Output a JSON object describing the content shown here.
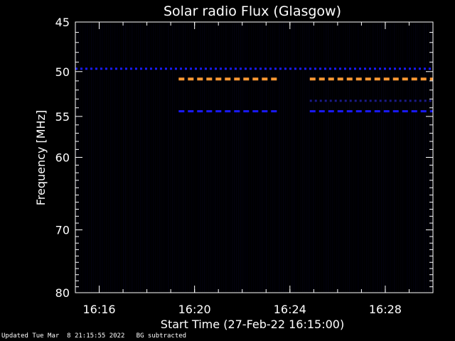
{
  "chart_data": {
    "type": "heatmap",
    "title": "Solar radio Flux (Glasgow)",
    "xlabel": "Start Time (27-Feb-22 16:15:00)",
    "ylabel": "Frequency [MHz]",
    "x_range_minutes": [
      "16:15:00",
      "16:30:00"
    ],
    "xticks": [
      "16:16",
      "16:20",
      "16:24",
      "16:28"
    ],
    "yticks": [
      45,
      50,
      55,
      60,
      70,
      80
    ],
    "ylim": [
      45,
      80
    ],
    "y_scale": "log",
    "y_inverted": true,
    "colors": {
      "background": "#000000",
      "frame": "#ffffff",
      "low_intensity": "#05052a",
      "medium_intensity": "#1a1aff",
      "high_intensity": "#ff9933"
    },
    "bands": [
      {
        "freq": 49.7,
        "from": "16:15:00",
        "to": "16:30:00",
        "level": "medium",
        "pattern": "dashed-fine"
      },
      {
        "freq": 50.8,
        "from": "16:19:20",
        "to": "16:23:30",
        "level": "high",
        "pattern": "dashed"
      },
      {
        "freq": 50.8,
        "from": "16:24:50",
        "to": "16:30:00",
        "level": "high",
        "pattern": "dashed"
      },
      {
        "freq": 54.4,
        "from": "16:19:20",
        "to": "16:23:30",
        "level": "medium",
        "pattern": "dashed"
      },
      {
        "freq": 54.4,
        "from": "16:24:50",
        "to": "16:30:00",
        "level": "medium",
        "pattern": "dashed"
      },
      {
        "freq": 53.2,
        "from": "16:24:50",
        "to": "16:30:00",
        "level": "low",
        "pattern": "dashed-fine"
      }
    ]
  },
  "footer": {
    "updated": "Updated Tue Mar  8 21:15:55 2022",
    "note": "BG subtracted"
  }
}
